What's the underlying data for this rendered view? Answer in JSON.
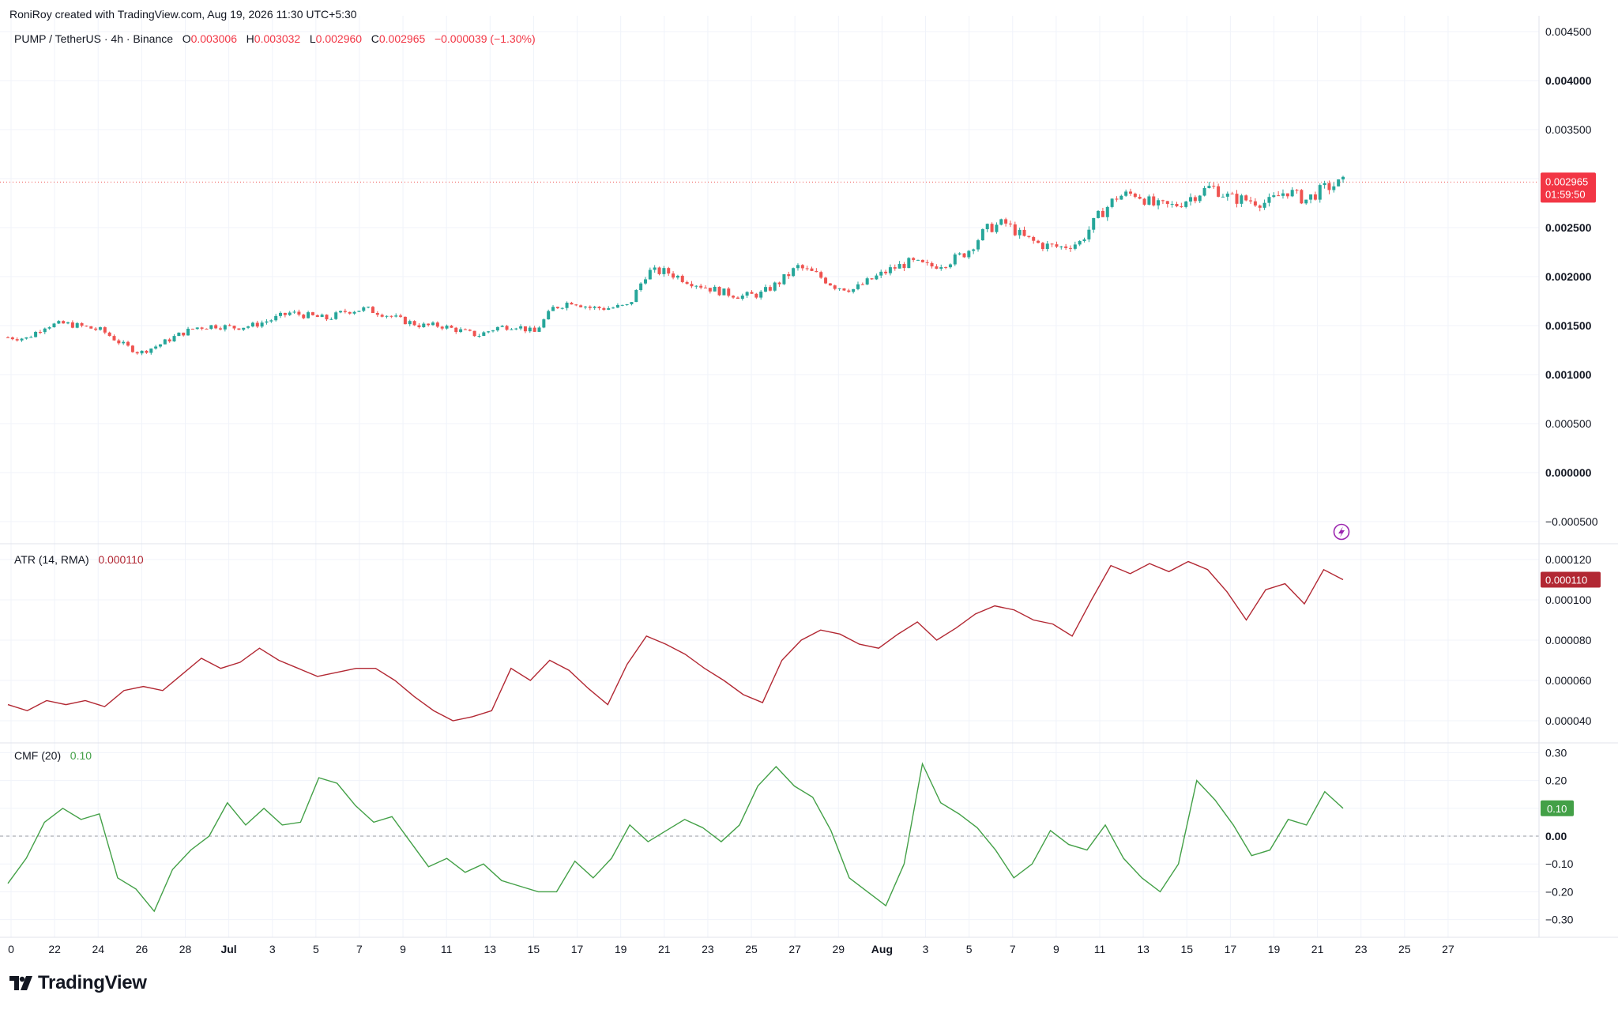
{
  "header": {
    "credit": "RoniRoy created with TradingView.com, Aug 19, 2026 11:30 UTC+5:30"
  },
  "legend": {
    "symbol": "PUMP / TetherUS · 4h · Binance",
    "o_label": "O",
    "o_value": "0.003006",
    "h_label": "H",
    "h_value": "0.003032",
    "l_label": "L",
    "l_value": "0.002960",
    "c_label": "C",
    "c_value": "0.002965",
    "change": "−0.000039 (−1.30%)"
  },
  "atr_legend": {
    "name": "ATR (14, RMA)",
    "value": "0.000110"
  },
  "cmf_legend": {
    "name": "CMF (20)",
    "value": "0.10"
  },
  "price_tag": {
    "value": "0.002965",
    "countdown": "01:59:50"
  },
  "atr_tag": "0.000110",
  "cmf_tag": "0.10",
  "footer": {
    "brand": "TradingView"
  },
  "colors": {
    "up": "#26a69a",
    "down": "#ef5350",
    "atr_line": "#b22833",
    "cmf_line": "#43a047",
    "accent_purple": "#9c27b0"
  },
  "chart_data": [
    {
      "type": "candlestick",
      "title": "PUMP / TetherUS · 4h · Binance",
      "y_axis_ticks": [
        "0.004500",
        "0.004000",
        "0.003500",
        "0.003000",
        "0.002500",
        "0.002000",
        "0.001500",
        "0.001000",
        "0.000500",
        "0.000000",
        "−0.000500"
      ],
      "y_range": [
        -0.0005,
        0.0045
      ],
      "x_axis_ticks": [
        "0",
        "22",
        "24",
        "26",
        "28",
        "Jul",
        "3",
        "5",
        "7",
        "9",
        "11",
        "13",
        "15",
        "17",
        "19",
        "21",
        "23",
        "25",
        "27",
        "29",
        "Aug",
        "3",
        "5",
        "7",
        "9",
        "11",
        "13",
        "15",
        "17",
        "19",
        "21",
        "23",
        "25",
        "27"
      ],
      "close_path": [
        [
          0,
          0.00138
        ],
        [
          1,
          0.00137
        ],
        [
          2,
          0.0015
        ],
        [
          3,
          0.00152
        ],
        [
          4,
          0.00149
        ],
        [
          5,
          0.00145
        ],
        [
          6,
          0.00132
        ],
        [
          7,
          0.00122
        ],
        [
          8,
          0.0013
        ],
        [
          9,
          0.0014
        ],
        [
          10,
          0.00148
        ],
        [
          11,
          0.0015
        ],
        [
          12,
          0.00148
        ],
        [
          13,
          0.0015
        ],
        [
          14,
          0.00156
        ],
        [
          15,
          0.00163
        ],
        [
          16,
          0.0016
        ],
        [
          17,
          0.00157
        ],
        [
          18,
          0.00165
        ],
        [
          19,
          0.00167
        ],
        [
          20,
          0.00162
        ],
        [
          21,
          0.00155
        ],
        [
          22,
          0.0015
        ],
        [
          23,
          0.0015
        ],
        [
          24,
          0.00145
        ],
        [
          25,
          0.0014
        ],
        [
          26,
          0.00148
        ],
        [
          27,
          0.0015
        ],
        [
          28,
          0.00143
        ],
        [
          29,
          0.00168
        ],
        [
          30,
          0.00175
        ],
        [
          31,
          0.00168
        ],
        [
          32,
          0.00168
        ],
        [
          33,
          0.0017
        ],
        [
          34,
          0.00205
        ],
        [
          35,
          0.00205
        ],
        [
          36,
          0.00197
        ],
        [
          37,
          0.0019
        ],
        [
          38,
          0.00184
        ],
        [
          39,
          0.0018
        ],
        [
          40,
          0.00182
        ],
        [
          41,
          0.00194
        ],
        [
          42,
          0.0021
        ],
        [
          43,
          0.00202
        ],
        [
          44,
          0.0019
        ],
        [
          45,
          0.00187
        ],
        [
          46,
          0.00198
        ],
        [
          47,
          0.00208
        ],
        [
          48,
          0.00215
        ],
        [
          49,
          0.0021
        ],
        [
          50,
          0.00215
        ],
        [
          51,
          0.00225
        ],
        [
          52,
          0.00248
        ],
        [
          53,
          0.00255
        ],
        [
          54,
          0.0024
        ],
        [
          55,
          0.00232
        ],
        [
          56,
          0.0023
        ],
        [
          57,
          0.00235
        ],
        [
          58,
          0.00262
        ],
        [
          59,
          0.00282
        ],
        [
          60,
          0.00285
        ],
        [
          61,
          0.00272
        ],
        [
          62,
          0.00272
        ],
        [
          63,
          0.00282
        ],
        [
          64,
          0.00292
        ],
        [
          65,
          0.0028
        ],
        [
          66,
          0.00278
        ],
        [
          67,
          0.00275
        ],
        [
          68,
          0.00288
        ],
        [
          69,
          0.00278
        ],
        [
          70,
          0.0029
        ],
        [
          71,
          0.00296
        ]
      ]
    },
    {
      "type": "line",
      "title": "ATR (14, RMA)",
      "y_axis_ticks": [
        "0.000120",
        "0.000100",
        "0.000080",
        "0.000060",
        "0.000040"
      ],
      "y_range": [
        3.3e-05,
        0.000124
      ],
      "values": [
        [
          0,
          4.8e-05
        ],
        [
          1,
          4.5e-05
        ],
        [
          2,
          5e-05
        ],
        [
          3,
          4.8e-05
        ],
        [
          4,
          5e-05
        ],
        [
          5,
          4.7e-05
        ],
        [
          6,
          5.5e-05
        ],
        [
          7,
          5.7e-05
        ],
        [
          8,
          5.5e-05
        ],
        [
          9,
          6.3e-05
        ],
        [
          10,
          7.1e-05
        ],
        [
          11,
          6.6e-05
        ],
        [
          12,
          6.9e-05
        ],
        [
          13,
          7.6e-05
        ],
        [
          14,
          7e-05
        ],
        [
          15,
          6.6e-05
        ],
        [
          16,
          6.2e-05
        ],
        [
          17,
          6.4e-05
        ],
        [
          18,
          6.6e-05
        ],
        [
          19,
          6.6e-05
        ],
        [
          20,
          6e-05
        ],
        [
          21,
          5.2e-05
        ],
        [
          22,
          4.5e-05
        ],
        [
          23,
          4e-05
        ],
        [
          24,
          4.2e-05
        ],
        [
          25,
          4.5e-05
        ],
        [
          26,
          6.6e-05
        ],
        [
          27,
          6e-05
        ],
        [
          28,
          7e-05
        ],
        [
          29,
          6.5e-05
        ],
        [
          30,
          5.6e-05
        ],
        [
          31,
          4.8e-05
        ],
        [
          32,
          6.8e-05
        ],
        [
          33,
          8.2e-05
        ],
        [
          34,
          7.8e-05
        ],
        [
          35,
          7.3e-05
        ],
        [
          36,
          6.6e-05
        ],
        [
          37,
          6e-05
        ],
        [
          38,
          5.3e-05
        ],
        [
          39,
          4.9e-05
        ],
        [
          40,
          7e-05
        ],
        [
          41,
          8e-05
        ],
        [
          42,
          8.5e-05
        ],
        [
          43,
          8.3e-05
        ],
        [
          44,
          7.8e-05
        ],
        [
          45,
          7.6e-05
        ],
        [
          46,
          8.3e-05
        ],
        [
          47,
          8.9e-05
        ],
        [
          48,
          8e-05
        ],
        [
          49,
          8.6e-05
        ],
        [
          50,
          9.3e-05
        ],
        [
          51,
          9.7e-05
        ],
        [
          52,
          9.5e-05
        ],
        [
          53,
          9e-05
        ],
        [
          54,
          8.8e-05
        ],
        [
          55,
          8.2e-05
        ],
        [
          56,
          0.0001
        ],
        [
          57,
          0.000117
        ],
        [
          58,
          0.000113
        ],
        [
          59,
          0.000118
        ],
        [
          60,
          0.000114
        ],
        [
          61,
          0.000119
        ],
        [
          62,
          0.000115
        ],
        [
          63,
          0.000104
        ],
        [
          64,
          9e-05
        ],
        [
          65,
          0.000105
        ],
        [
          66,
          0.000108
        ],
        [
          67,
          9.8e-05
        ],
        [
          68,
          0.000115
        ],
        [
          69,
          0.00011
        ]
      ]
    },
    {
      "type": "line",
      "title": "CMF (20)",
      "y_axis_ticks": [
        "0.30",
        "0.20",
        "0.10",
        "0.00",
        "−0.10",
        "−0.20",
        "−0.30"
      ],
      "y_range": [
        -0.33,
        0.33
      ],
      "values": [
        [
          0,
          -0.17
        ],
        [
          1,
          -0.08
        ],
        [
          2,
          0.05
        ],
        [
          3,
          0.1
        ],
        [
          4,
          0.06
        ],
        [
          5,
          0.08
        ],
        [
          6,
          -0.15
        ],
        [
          7,
          -0.19
        ],
        [
          8,
          -0.27
        ],
        [
          9,
          -0.12
        ],
        [
          10,
          -0.05
        ],
        [
          11,
          0.0
        ],
        [
          12,
          0.12
        ],
        [
          13,
          0.04
        ],
        [
          14,
          0.1
        ],
        [
          15,
          0.04
        ],
        [
          16,
          0.05
        ],
        [
          17,
          0.21
        ],
        [
          18,
          0.19
        ],
        [
          19,
          0.11
        ],
        [
          20,
          0.05
        ],
        [
          21,
          0.07
        ],
        [
          22,
          -0.02
        ],
        [
          23,
          -0.11
        ],
        [
          24,
          -0.08
        ],
        [
          25,
          -0.13
        ],
        [
          26,
          -0.1
        ],
        [
          27,
          -0.16
        ],
        [
          28,
          -0.18
        ],
        [
          29,
          -0.2
        ],
        [
          30,
          -0.2
        ],
        [
          31,
          -0.09
        ],
        [
          32,
          -0.15
        ],
        [
          33,
          -0.08
        ],
        [
          34,
          0.04
        ],
        [
          35,
          -0.02
        ],
        [
          36,
          0.02
        ],
        [
          37,
          0.06
        ],
        [
          38,
          0.03
        ],
        [
          39,
          -0.02
        ],
        [
          40,
          0.04
        ],
        [
          41,
          0.18
        ],
        [
          42,
          0.25
        ],
        [
          43,
          0.18
        ],
        [
          44,
          0.14
        ],
        [
          45,
          0.02
        ],
        [
          46,
          -0.15
        ],
        [
          47,
          -0.2
        ],
        [
          48,
          -0.25
        ],
        [
          49,
          -0.1
        ],
        [
          50,
          0.26
        ],
        [
          51,
          0.12
        ],
        [
          52,
          0.08
        ],
        [
          53,
          0.03
        ],
        [
          54,
          -0.05
        ],
        [
          55,
          -0.15
        ],
        [
          56,
          -0.1
        ],
        [
          57,
          0.02
        ],
        [
          58,
          -0.03
        ],
        [
          59,
          -0.05
        ],
        [
          60,
          0.04
        ],
        [
          61,
          -0.08
        ],
        [
          62,
          -0.15
        ],
        [
          63,
          -0.2
        ],
        [
          64,
          -0.1
        ],
        [
          65,
          0.2
        ],
        [
          66,
          0.13
        ],
        [
          67,
          0.04
        ],
        [
          68,
          -0.07
        ],
        [
          69,
          -0.05
        ],
        [
          70,
          0.06
        ],
        [
          71,
          0.04
        ],
        [
          72,
          0.16
        ],
        [
          73,
          0.1
        ]
      ]
    }
  ]
}
